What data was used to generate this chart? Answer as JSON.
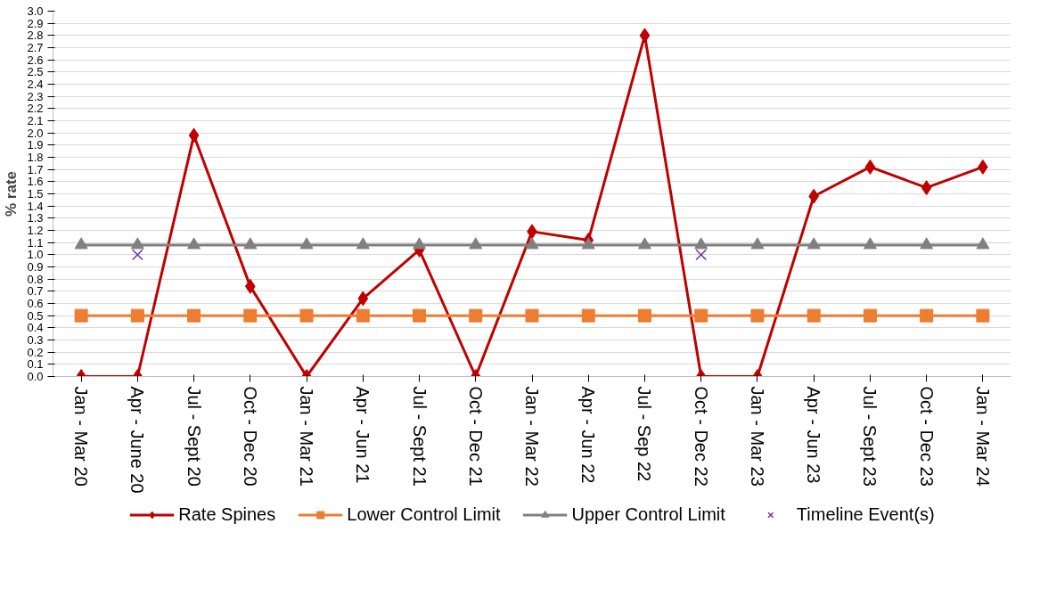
{
  "chart_data": {
    "type": "line",
    "ylabel": "% rate",
    "categories": [
      "Jan - Mar 20",
      "Apr - June 20",
      "Jul - Sept 20",
      "Oct - Dec 20",
      "Jan - Mar 21",
      "Apr - Jun 21",
      "Jul - Sept 21",
      "Oct - Dec 21",
      "Jan - Mar 22",
      "Apr - Jun 22",
      "Jul - Sep 22",
      "Oct - Dec 22",
      "Jan - Mar 23",
      "Apr - Jun 23",
      "Jul - Sept 23",
      "Oct - Dec 23",
      "Jan - Mar 24"
    ],
    "series": [
      {
        "name": "Rate Spines",
        "color": "#c00000",
        "marker": "diamond",
        "values": [
          0,
          0,
          1.98,
          0.74,
          0,
          0.64,
          1.04,
          0,
          1.19,
          1.12,
          2.8,
          0,
          0,
          1.48,
          1.72,
          1.55,
          1.72
        ]
      },
      {
        "name": "Lower Control Limit",
        "color": "#ed7d31",
        "marker": "square",
        "values": [
          0.5,
          0.5,
          0.5,
          0.5,
          0.5,
          0.5,
          0.5,
          0.5,
          0.5,
          0.5,
          0.5,
          0.5,
          0.5,
          0.5,
          0.5,
          0.5,
          0.5
        ]
      },
      {
        "name": "Upper Control Limit",
        "color": "#808080",
        "marker": "triangle",
        "values": [
          1.08,
          1.08,
          1.08,
          1.08,
          1.08,
          1.08,
          1.08,
          1.08,
          1.08,
          1.08,
          1.08,
          1.08,
          1.08,
          1.08,
          1.08,
          1.08,
          1.08
        ]
      },
      {
        "name": "Timeline Event(s)",
        "type": "scatter",
        "color": "#7030a0",
        "marker": "cross",
        "values": [
          null,
          1.0,
          null,
          null,
          null,
          null,
          null,
          null,
          null,
          null,
          null,
          1.0,
          null,
          null,
          null,
          null,
          null
        ]
      }
    ],
    "ylim": [
      0,
      3.0
    ],
    "yticks": [
      {
        "value": 0,
        "label": "0.0"
      },
      0.1,
      0.2,
      0.3,
      0.4,
      0.5,
      0.6,
      0.7,
      0.8,
      0.9,
      {
        "value": 1,
        "label": "1.0"
      },
      1.1,
      1.2,
      1.3,
      1.4,
      1.5,
      1.6,
      1.7,
      1.8,
      1.9,
      {
        "value": 2,
        "label": "2.0"
      },
      2.1,
      2.2,
      2.3,
      2.4,
      2.5,
      2.6,
      2.7,
      2.8,
      2.9,
      {
        "value": 3,
        "label": "3.0"
      }
    ],
    "grid": "y",
    "legend": "bottom"
  }
}
